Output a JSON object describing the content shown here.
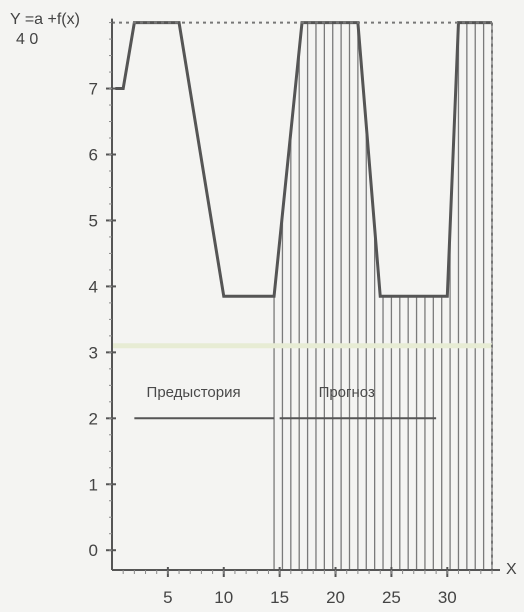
{
  "chart_data": {
    "type": "line",
    "title": "",
    "ylabel_line1": "Y =a +f(x)",
    "ylabel_line2": "4    0",
    "xlabel": "X",
    "xlim": [
      0,
      34
    ],
    "ylim": [
      -0.3,
      8.1
    ],
    "x_ticks": [
      5,
      10,
      15,
      20,
      25,
      30
    ],
    "y_ticks": [
      0,
      1,
      2,
      3,
      4,
      5,
      6,
      7
    ],
    "y_top_value": 8,
    "series": [
      {
        "x": [
          0.3,
          1,
          2,
          6,
          10,
          14,
          14.5,
          17,
          22,
          24,
          29,
          30,
          31,
          32,
          34
        ],
        "y": [
          7.0,
          7.0,
          8.0,
          8.0,
          3.85,
          3.85,
          3.85,
          8.0,
          8.0,
          3.85,
          3.85,
          3.85,
          8.0,
          8.0,
          8.0
        ]
      }
    ],
    "baseline_y": 3.1,
    "hatched_region": {
      "x_start": 14.5,
      "x_end": 34,
      "spacing": 0.75
    },
    "annotations": [
      {
        "text": "Предыстория",
        "x": 7.3,
        "y": 2.32,
        "underline_from": 2,
        "underline_to": 14.5,
        "underline_y": 2.0
      },
      {
        "text": "Прогноз",
        "x": 21,
        "y": 2.32,
        "underline_from": 15,
        "underline_to": 29,
        "underline_y": 2.0
      }
    ],
    "colors": {
      "line": "#555555",
      "hatch": "#7a7a7a",
      "baseline": "#e7ecd4",
      "axis": "#555555"
    }
  }
}
